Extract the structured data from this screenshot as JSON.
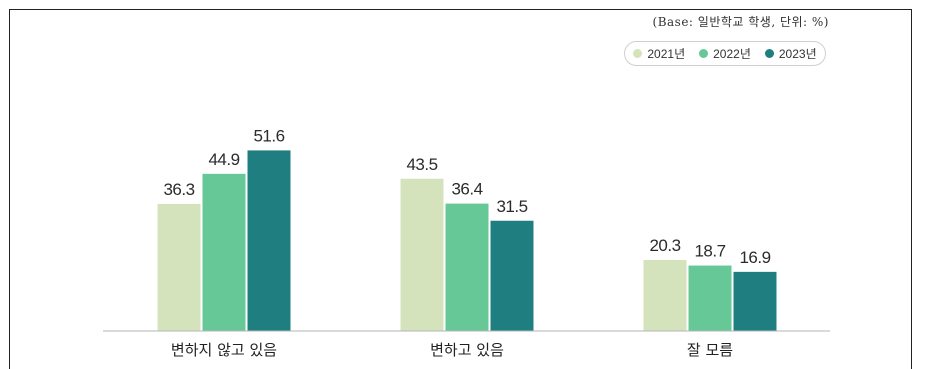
{
  "note": "(Base: 일반학교 학생, 단위: %)",
  "chart_data": {
    "type": "bar",
    "categories": [
      "변하지 않고 있음",
      "변하고 있음",
      "잘 모름"
    ],
    "series": [
      {
        "name": "2021년",
        "color": "#d5e3bd",
        "values": [
          36.3,
          43.5,
          20.3
        ]
      },
      {
        "name": "2022년",
        "color": "#66c896",
        "values": [
          44.9,
          36.4,
          18.7
        ]
      },
      {
        "name": "2023년",
        "color": "#1f7f80",
        "values": [
          51.6,
          31.5,
          16.9
        ]
      }
    ],
    "title": "",
    "xlabel": "",
    "ylabel": "",
    "ylim": [
      0,
      60
    ],
    "grid": false,
    "legend": "top-right"
  }
}
